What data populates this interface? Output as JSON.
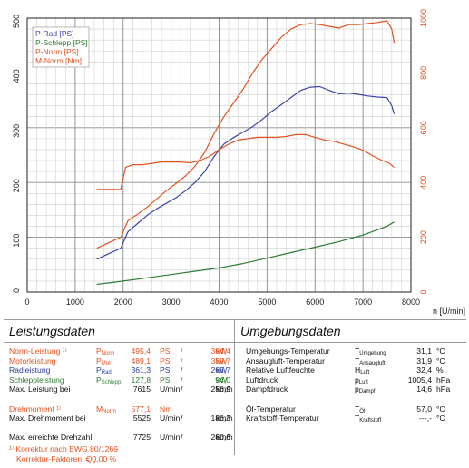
{
  "chart_data": {
    "type": "line",
    "xlabel": "n [U/min]",
    "x_ticks": [
      0,
      1000,
      2000,
      3000,
      4000,
      5000,
      6000,
      7000,
      8000
    ],
    "x_tick_labels": [
      "0",
      "1000",
      "2000",
      "3000",
      "4000",
      "5000",
      "6000",
      "7000",
      "8000"
    ],
    "xlim": [
      0,
      8000
    ],
    "ylim_left": [
      0,
      500
    ],
    "y_left_ticks": [
      "0",
      "100",
      "200",
      "300",
      "400",
      "500"
    ],
    "ylim_right": [
      0,
      1000
    ],
    "y_right_ticks": [
      "0",
      "200",
      "400",
      "600",
      "800",
      "1000"
    ],
    "grid": true,
    "legend_position": "top-left",
    "colors": {
      "p_rad": "#3a45a8",
      "p_schlepp": "#2e7d32",
      "p_norm": "#e2531f",
      "m_norm": "#e2531f",
      "left_axis": "#222222",
      "right_axis": "#e2531f"
    },
    "series": [
      {
        "name": "P-Rad [PS]",
        "axis": "left",
        "x": [
          1450,
          1700,
          1950,
          2100,
          2300,
          2500,
          2700,
          2900,
          3100,
          3300,
          3500,
          3700,
          3900,
          4100,
          4300,
          4500,
          4700,
          4900,
          5100,
          5300,
          5500,
          5700,
          5900,
          6100,
          6300,
          6500,
          6700,
          6900,
          7100,
          7300,
          7500,
          7600,
          7650
        ],
        "y": [
          60,
          70,
          80,
          110,
          125,
          140,
          152,
          162,
          172,
          185,
          200,
          220,
          248,
          270,
          282,
          292,
          302,
          315,
          330,
          342,
          355,
          368,
          374,
          375,
          368,
          362,
          363,
          361,
          358,
          356,
          355,
          340,
          325
        ]
      },
      {
        "name": "P-Schlepp [PS]",
        "axis": "left",
        "x": [
          1450,
          2000,
          2500,
          3000,
          3500,
          4000,
          4500,
          5000,
          5500,
          6000,
          6500,
          7000,
          7500,
          7650
        ],
        "y": [
          14,
          20,
          26,
          32,
          38,
          44,
          52,
          62,
          72,
          82,
          92,
          104,
          120,
          128
        ]
      },
      {
        "name": "P-Norm [PS]",
        "axis": "left",
        "x": [
          1450,
          1700,
          1950,
          2100,
          2300,
          2500,
          2700,
          2900,
          3100,
          3300,
          3500,
          3700,
          3900,
          4100,
          4300,
          4500,
          4700,
          4900,
          5100,
          5300,
          5500,
          5700,
          5900,
          6100,
          6300,
          6500,
          6700,
          6900,
          7100,
          7300,
          7500,
          7600,
          7650
        ],
        "y": [
          80,
          90,
          100,
          130,
          142,
          155,
          170,
          185,
          198,
          212,
          230,
          255,
          290,
          320,
          345,
          370,
          400,
          425,
          445,
          465,
          480,
          488,
          490,
          488,
          485,
          482,
          488,
          488,
          490,
          492,
          495,
          480,
          455
        ]
      },
      {
        "name": "M-Norm [Nm]",
        "axis": "right",
        "x": [
          1450,
          1700,
          1950,
          2050,
          2200,
          2400,
          2600,
          2800,
          3000,
          3200,
          3400,
          3600,
          3800,
          4000,
          4200,
          4400,
          4600,
          4800,
          5000,
          5200,
          5400,
          5600,
          5800,
          6000,
          6200,
          6400,
          6600,
          6800,
          7000,
          7200,
          7400,
          7550,
          7650
        ],
        "y": [
          375,
          375,
          375,
          455,
          465,
          465,
          470,
          475,
          475,
          475,
          472,
          480,
          495,
          520,
          540,
          555,
          560,
          565,
          565,
          565,
          568,
          575,
          575,
          565,
          555,
          550,
          540,
          530,
          518,
          498,
          480,
          470,
          455
        ]
      }
    ]
  },
  "left_panel": {
    "title": "Leistungsdaten",
    "rows": [
      {
        "label": "Norm-Leistung ¹⁾",
        "sym": "P",
        "sub": "Norm",
        "v1": "495,4",
        "u1": "PS",
        "sep": "/",
        "v2": "364,4",
        "u2": "kW",
        "color": "orange"
      },
      {
        "label": "Motorleistung",
        "sym": "P",
        "sub": "Mot",
        "v1": "489,1",
        "u1": "PS",
        "sep": "/",
        "v2": "359,7",
        "u2": "kW",
        "color": "orange"
      },
      {
        "label": "Radleistung",
        "sym": "P",
        "sub": "Rad",
        "v1": "361,3",
        "u1": "PS",
        "sep": "/",
        "v2": "265,7",
        "u2": "kW",
        "color": "blue"
      },
      {
        "label": "Schleppleistung",
        "sym": "P",
        "sub": "Schlepp",
        "v1": "127,8",
        "u1": "PS",
        "sep": "/",
        "v2": "94,0",
        "u2": "kW",
        "color": "green"
      },
      {
        "label": "Max. Leistung bei",
        "sym": "",
        "sub": "",
        "v1": "7615",
        "u1": "U/min",
        "sep": "/",
        "v2": "256,9",
        "u2": "km/h",
        "color": "black"
      },
      {
        "label": "",
        "sym": "",
        "sub": "",
        "v1": "",
        "u1": "",
        "sep": "",
        "v2": "",
        "u2": "",
        "color": "black"
      },
      {
        "label": "Drehmoment ¹⁾",
        "sym": "M",
        "sub": "Norm",
        "v1": "577,1",
        "u1": "Nm",
        "sep": "",
        "v2": "",
        "u2": "",
        "color": "orange"
      },
      {
        "label": "Max. Drehmoment bei",
        "sym": "",
        "sub": "",
        "v1": "5525",
        "u1": "U/min",
        "sep": "/",
        "v2": "186,3",
        "u2": "km/h",
        "color": "black"
      },
      {
        "label": "",
        "sym": "",
        "sub": "",
        "v1": "",
        "u1": "",
        "sep": "",
        "v2": "",
        "u2": "",
        "color": "black"
      },
      {
        "label": "Max. erreichte Drehzahl",
        "sym": "",
        "sub": "",
        "v1": "7725",
        "u1": "U/min",
        "sep": "/",
        "v2": "260,6",
        "u2": "km/h",
        "color": "black"
      }
    ],
    "footnote1": "¹⁾ Korrektur nach EWG 80/1269",
    "footnote2": "Korrektur-Faktoren: Q",
    "footnote2_sub": "V",
    "footnote2_value": "=   0,00 %"
  },
  "right_panel": {
    "title": "Umgebungsdaten",
    "rows": [
      {
        "label": "Umgebungs-Temperatur",
        "sym": "T",
        "sub": "Umgebung",
        "value": "31,1",
        "unit": "°C"
      },
      {
        "label": "Ansaugluft-Temperatur",
        "sym": "T",
        "sub": "Ansaugluft",
        "value": "31,9",
        "unit": "°C"
      },
      {
        "label": "Relative Luftfeuchte",
        "sym": "H",
        "sub": "Luft",
        "value": "32,4",
        "unit": "%"
      },
      {
        "label": "Luftdruck",
        "sym": "p",
        "sub": "Luft",
        "value": "1005,4",
        "unit": "hPa"
      },
      {
        "label": "Dampfdruck",
        "sym": "p",
        "sub": "Dampf",
        "value": "14,6",
        "unit": "hPa"
      },
      {
        "label": "",
        "sym": "",
        "sub": "",
        "value": "",
        "unit": ""
      },
      {
        "label": "Öl-Temperatur",
        "sym": "T",
        "sub": "Öl",
        "value": "57,0",
        "unit": "°C"
      },
      {
        "label": "Kraftstoff-Temperatur",
        "sym": "T",
        "sub": "Kraftstoff",
        "value": "---,-",
        "unit": "°C"
      }
    ]
  }
}
